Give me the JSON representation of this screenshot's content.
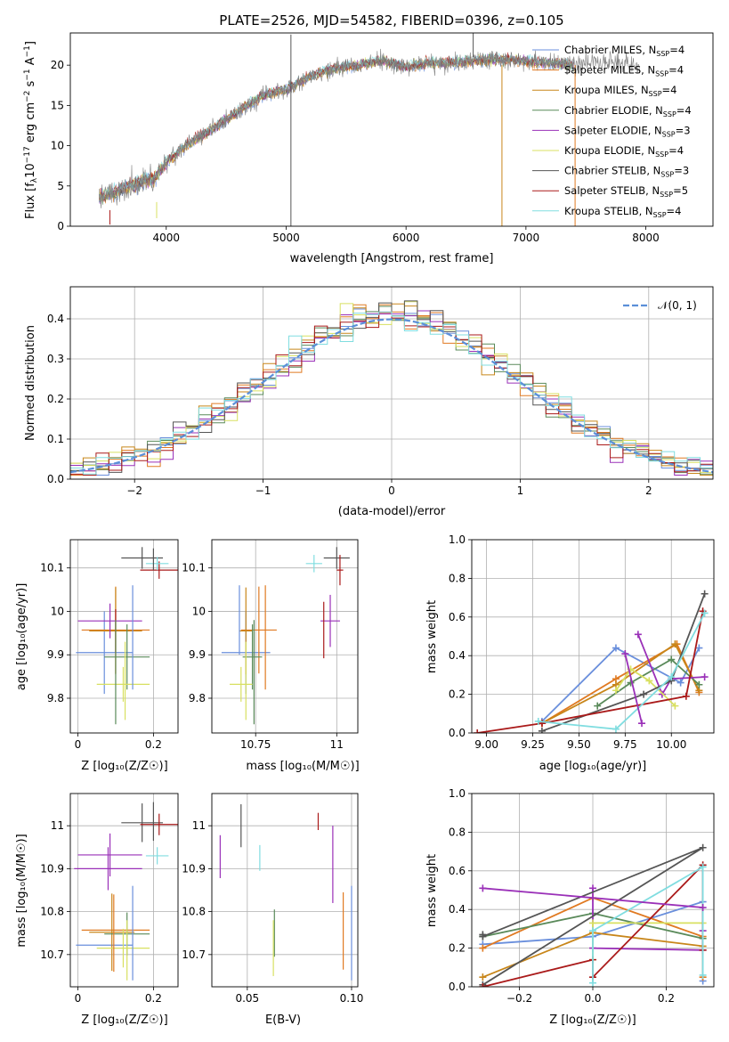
{
  "title": "PLATE=2526, MJD=54582, FIBERID=0396, z=0.105",
  "colors": {
    "Chabrier MILES": "#6a8fdc",
    "Salpeter MILES": "#e07a22",
    "Kroupa MILES": "#c8861a",
    "Chabrier ELODIE": "#5a8a5a",
    "Salpeter ELODIE": "#9a30b8",
    "Kroupa ELODIE": "#d8e060",
    "Chabrier STELIB": "#555555",
    "Salpeter STELIB": "#aa1a1a",
    "Kroupa STELIB": "#80dde0"
  },
  "legend": {
    "names": [
      "Chabrier MILES",
      "Salpeter MILES",
      "Kroupa MILES",
      "Chabrier ELODIE",
      "Salpeter ELODIE",
      "Kroupa ELODIE",
      "Chabrier STELIB",
      "Salpeter STELIB",
      "Kroupa STELIB"
    ],
    "nssp": [
      "4",
      "4",
      "4",
      "4",
      "3",
      "4",
      "3",
      "5",
      "4"
    ],
    "nssp_prefix": "N",
    "nssp_sub": "SSP",
    "normal_label": "𝒩(0, 1)"
  },
  "chart_data": [
    {
      "id": "spectrum",
      "type": "line",
      "xlabel": "wavelength [Angstrom, rest frame]",
      "ylabel_main": "Flux [f",
      "ylabel_sub": "λ",
      "ylabel_rest": "10",
      "ylabel_exp1": "−17",
      "ylabel_units": " erg cm",
      "ylabel_exp2": "−2",
      "ylabel_s": " s",
      "ylabel_exp3": "−1",
      "ylabel_A": " A",
      "ylabel_exp4": "−1",
      "ylabel_end": "]",
      "xlim": [
        3200,
        8560
      ],
      "ylim": [
        0,
        24
      ],
      "xticks": [
        4000,
        5000,
        6000,
        7000,
        8000
      ],
      "yticks": [
        0,
        5,
        10,
        15,
        20
      ],
      "continuum": [
        [
          3440,
          3.6
        ],
        [
          3600,
          4.3
        ],
        [
          3700,
          5.0
        ],
        [
          3800,
          5.6
        ],
        [
          3900,
          5.9
        ],
        [
          4000,
          8.0
        ],
        [
          4200,
          10.4
        ],
        [
          4400,
          12.2
        ],
        [
          4600,
          14.3
        ],
        [
          4800,
          16.2
        ],
        [
          5000,
          17.0
        ],
        [
          5200,
          18.6
        ],
        [
          5400,
          19.6
        ],
        [
          5600,
          20.0
        ],
        [
          5800,
          20.6
        ],
        [
          6000,
          19.8
        ],
        [
          6200,
          20.3
        ],
        [
          6400,
          20.3
        ],
        [
          6600,
          20.6
        ],
        [
          6800,
          20.7
        ],
        [
          7000,
          20.5
        ],
        [
          7200,
          20.3
        ],
        [
          7400,
          20.0
        ],
        [
          7600,
          20.5
        ],
        [
          7800,
          20.3
        ],
        [
          7950,
          20.1
        ]
      ],
      "models_end": 7400,
      "data_end": 7950,
      "spikes": [
        {
          "x": 5040,
          "y0": 0,
          "y1": 23.8,
          "color": "#555555"
        },
        {
          "x": 6800,
          "y0": 0,
          "y1": 20.0,
          "color": "#c8861a"
        },
        {
          "x": 7410,
          "y0": 0,
          "y1": 20.0,
          "color": "#e07a22"
        },
        {
          "x": 3920,
          "y0": 1.0,
          "y1": 3.0,
          "color": "#d8e060"
        },
        {
          "x": 3530,
          "y0": 0.2,
          "y1": 2.0,
          "color": "#aa1a1a"
        },
        {
          "x": 6560,
          "y0": 21.0,
          "y1": 24.0,
          "color": "#555555"
        }
      ]
    },
    {
      "id": "histogram",
      "type": "bar",
      "xlabel": "(data-model)/error",
      "ylabel": "Normed distribution",
      "xlim": [
        -2.5,
        2.5
      ],
      "ylim": [
        0,
        0.48
      ],
      "xticks": [
        -2,
        -1,
        0,
        1,
        2
      ],
      "yticks": [
        0.0,
        0.1,
        0.2,
        0.3,
        0.4
      ],
      "bin_width": 0.1
    },
    {
      "id": "age_vs_Z",
      "type": "scatter",
      "xlabel": "Z [log₁₀(Z/Z☉)]",
      "ylabel": "age  [log₁₀(age/yr)]",
      "xlim": [
        -0.02,
        0.265
      ],
      "ylim": [
        9.72,
        10.165
      ],
      "xticks": [
        0.0,
        0.2
      ],
      "yticks": [
        9.8,
        9.9,
        10.0,
        10.1
      ],
      "points": [
        {
          "series": "Chabrier MILES",
          "x": 0.07,
          "y": 9.905,
          "xe": 0.075,
          "ye": 0.095
        },
        {
          "series": "Salpeter MILES",
          "x": 0.1,
          "y": 9.957,
          "xe": 0.09,
          "ye": 0.1
        },
        {
          "series": "Kroupa MILES",
          "x": 0.1,
          "y": 9.955,
          "xe": 0.07,
          "ye": 0.1
        },
        {
          "series": "Chabrier ELODIE",
          "x": 0.13,
          "y": 9.895,
          "xe": 0.06,
          "ye": 0.075
        },
        {
          "series": "Salpeter ELODIE",
          "x": 0.085,
          "y": 9.978,
          "xe": 0.085,
          "ye": 0.04
        },
        {
          "series": "Kroupa ELODIE",
          "x": 0.12,
          "y": 9.832,
          "xe": 0.07,
          "ye": 0.04
        },
        {
          "series": "Chabrier STELIB",
          "x": 0.17,
          "y": 10.123,
          "xe": 0.055,
          "ye": 0.025
        },
        {
          "series": "Salpeter STELIB",
          "x": 0.215,
          "y": 10.095,
          "xe": 0.05,
          "ye": 0.02
        },
        {
          "series": "Kroupa STELIB",
          "x": 0.21,
          "y": 10.11,
          "xe": 0.03,
          "ye": 0.015
        },
        {
          "series": "Salpeter STELIB",
          "x": 0.1,
          "y": 9.955,
          "xe": 0.0,
          "ye": 0.05
        },
        {
          "series": "Chabrier MILES",
          "x": 0.145,
          "y": 9.94,
          "xe": 0.0,
          "ye": 0.12
        },
        {
          "series": "Chabrier STELIB",
          "x": 0.2,
          "y": 10.12,
          "xe": 0.0,
          "ye": 0.025
        },
        {
          "series": "Chabrier ELODIE",
          "x": 0.1,
          "y": 9.86,
          "xe": 0.0,
          "ye": 0.12
        },
        {
          "series": "Kroupa ELODIE",
          "x": 0.125,
          "y": 9.84,
          "xe": 0.0,
          "ye": 0.09
        }
      ]
    },
    {
      "id": "age_vs_mass",
      "type": "scatter",
      "xlabel": "mass [log₁₀(M/M☉)]",
      "xlim": [
        10.615,
        11.065
      ],
      "ylim": [
        9.72,
        10.165
      ],
      "xticks": [
        10.75,
        11.0
      ],
      "yticks": [
        9.8,
        9.9,
        10.0,
        10.1
      ],
      "points": [
        {
          "series": "Chabrier MILES",
          "x": 10.72,
          "y": 9.905,
          "xe": 0.075,
          "ye": 0.095
        },
        {
          "series": "Salpeter MILES",
          "x": 10.76,
          "y": 9.957,
          "xe": 0.055,
          "ye": 0.1
        },
        {
          "series": "Kroupa MILES",
          "x": 10.72,
          "y": 9.955,
          "xe": 0.02,
          "ye": 0.1
        },
        {
          "series": "Chabrier ELODIE",
          "x": 10.74,
          "y": 9.895,
          "xe": 0.03,
          "ye": 0.075
        },
        {
          "series": "Salpeter ELODIE",
          "x": 10.98,
          "y": 9.978,
          "xe": 0.03,
          "ye": 0.06
        },
        {
          "series": "Kroupa ELODIE",
          "x": 10.705,
          "y": 9.832,
          "xe": 0.035,
          "ye": 0.04
        },
        {
          "series": "Chabrier STELIB",
          "x": 11.0,
          "y": 10.123,
          "xe": 0.04,
          "ye": 0.025
        },
        {
          "series": "Salpeter STELIB",
          "x": 11.01,
          "y": 10.095,
          "xe": 0.01,
          "ye": 0.035
        },
        {
          "series": "Kroupa STELIB",
          "x": 10.93,
          "y": 10.11,
          "xe": 0.025,
          "ye": 0.02
        },
        {
          "series": "Salpeter STELIB",
          "x": 10.96,
          "y": 9.957,
          "xe": 0.0,
          "ye": 0.065
        },
        {
          "series": "Chabrier MILES",
          "x": 10.7,
          "y": 9.98,
          "xe": 0.0,
          "ye": 0.08
        },
        {
          "series": "Salpeter MILES",
          "x": 10.78,
          "y": 9.94,
          "xe": 0.0,
          "ye": 0.12
        },
        {
          "series": "Chabrier ELODIE",
          "x": 10.745,
          "y": 9.86,
          "xe": 0.0,
          "ye": 0.12
        },
        {
          "series": "Kroupa ELODIE",
          "x": 10.72,
          "y": 9.84,
          "xe": 0.0,
          "ye": 0.09
        }
      ]
    },
    {
      "id": "weight_vs_age",
      "type": "line",
      "xlabel": "age  [log₁₀(age/yr)]",
      "ylabel": "mass weight",
      "xlim": [
        8.92,
        10.23
      ],
      "ylim": [
        0,
        1.0
      ],
      "xticks": [
        9.0,
        9.25,
        9.5,
        9.75,
        10.0
      ],
      "xtick_labels": [
        "9.00",
        "9.25",
        "9.50",
        "9.75",
        "10.00"
      ],
      "yticks": [
        0.0,
        0.2,
        0.4,
        0.6,
        0.8,
        1.0
      ],
      "ytick_labels": [
        "0.0",
        "0.2",
        "0.4",
        "0.6",
        "0.8",
        "1.0"
      ],
      "series": [
        {
          "name": "Chabrier MILES",
          "x": [
            9.3,
            9.7,
            10.05,
            10.15
          ],
          "y": [
            0.06,
            0.44,
            0.26,
            0.44
          ]
        },
        {
          "name": "Salpeter MILES",
          "x": [
            9.3,
            9.7,
            10.03,
            10.15
          ],
          "y": [
            0.05,
            0.28,
            0.46,
            0.21
          ]
        },
        {
          "name": "Kroupa MILES",
          "x": [
            9.3,
            9.7,
            10.02,
            10.15
          ],
          "y": [
            0.05,
            0.25,
            0.46,
            0.22
          ]
        },
        {
          "name": "Chabrier ELODIE",
          "x": [
            9.6,
            9.78,
            10.0,
            10.15
          ],
          "y": [
            0.14,
            0.26,
            0.38,
            0.25
          ]
        },
        {
          "name": "Salpeter ELODIE",
          "x": [
            9.82,
            9.95,
            10.0,
            10.18
          ],
          "y": [
            0.51,
            0.2,
            0.28,
            0.29
          ]
        },
        {
          "name": "Kroupa ELODIE",
          "x": [
            9.7,
            9.78,
            9.88,
            10.02
          ],
          "y": [
            0.22,
            0.33,
            0.27,
            0.14
          ]
        },
        {
          "name": "Chabrier STELIB",
          "x": [
            9.3,
            9.85,
            10.0,
            10.18
          ],
          "y": [
            0.01,
            0.2,
            0.27,
            0.72
          ]
        },
        {
          "name": "Salpeter STELIB",
          "x": [
            8.95,
            9.3,
            10.08,
            10.17
          ],
          "y": [
            0.0,
            0.05,
            0.19,
            0.63
          ]
        },
        {
          "name": "Kroupa STELIB",
          "x": [
            9.28,
            9.7,
            10.0,
            10.18
          ],
          "y": [
            0.06,
            0.02,
            0.29,
            0.62
          ]
        },
        {
          "name": "Salpeter ELODIE",
          "x": [
            9.75,
            9.84
          ],
          "y": [
            0.41,
            0.05
          ]
        }
      ]
    },
    {
      "id": "mass_vs_Z",
      "type": "scatter",
      "xlabel": "Z [log₁₀(Z/Z☉)]",
      "ylabel": "mass [log₁₀(M/M☉)]",
      "xlim": [
        -0.02,
        0.265
      ],
      "ylim": [
        10.625,
        11.075
      ],
      "xticks": [
        0.0,
        0.2
      ],
      "yticks": [
        10.7,
        10.8,
        10.9,
        11.0
      ],
      "points": [
        {
          "series": "Chabrier MILES",
          "x": 0.07,
          "y": 10.722,
          "xe": 0.075,
          "ye": 0.0
        },
        {
          "series": "Salpeter MILES",
          "x": 0.1,
          "y": 10.757,
          "xe": 0.09,
          "ye": 0.0
        },
        {
          "series": "Kroupa MILES",
          "x": 0.09,
          "y": 10.752,
          "xe": 0.06,
          "ye": 0.09
        },
        {
          "series": "Chabrier ELODIE",
          "x": 0.13,
          "y": 10.748,
          "xe": 0.06,
          "ye": 0.05
        },
        {
          "series": "Salpeter ELODIE",
          "x": 0.085,
          "y": 10.932,
          "xe": 0.085,
          "ye": 0.05
        },
        {
          "series": "Kroupa ELODIE",
          "x": 0.12,
          "y": 10.715,
          "xe": 0.07,
          "ye": 0.045
        },
        {
          "series": "Chabrier STELIB",
          "x": 0.17,
          "y": 11.007,
          "xe": 0.055,
          "ye": 0.045
        },
        {
          "series": "Salpeter STELIB",
          "x": 0.215,
          "y": 11.003,
          "xe": 0.05,
          "ye": 0.025
        },
        {
          "series": "Kroupa STELIB",
          "x": 0.21,
          "y": 10.93,
          "xe": 0.03,
          "ye": 0.02
        },
        {
          "series": "Salpeter ELODIE",
          "x": 0.08,
          "y": 10.9,
          "xe": 0.09,
          "ye": 0.05
        },
        {
          "series": "Chabrier MILES",
          "x": 0.145,
          "y": 10.75,
          "xe": 0.0,
          "ye": 0.11
        },
        {
          "series": "Chabrier STELIB",
          "x": 0.2,
          "y": 11.01,
          "xe": 0.0,
          "ye": 0.045
        },
        {
          "series": "Salpeter MILES",
          "x": 0.095,
          "y": 10.75,
          "xe": 0.0,
          "ye": 0.09
        },
        {
          "series": "Kroupa ELODIE",
          "x": 0.13,
          "y": 10.71,
          "xe": 0.0,
          "ye": 0.07
        }
      ]
    },
    {
      "id": "mass_vs_ebv",
      "type": "scatter",
      "xlabel": "E(B-V)",
      "xlim": [
        0.033,
        0.103
      ],
      "ylim": [
        10.625,
        11.075
      ],
      "xticks": [
        0.05,
        0.1
      ],
      "xtick_labels": [
        "0.05",
        "0.10"
      ],
      "yticks": [
        10.7,
        10.8,
        10.9,
        11.0
      ],
      "points": [
        {
          "series": "Salpeter ELODIE",
          "x": 0.037,
          "y": 10.928,
          "xe": 0.0,
          "ye": 0.05
        },
        {
          "series": "Chabrier STELIB",
          "x": 0.047,
          "y": 11.0,
          "xe": 0.0,
          "ye": 0.05
        },
        {
          "series": "Kroupa STELIB",
          "x": 0.056,
          "y": 10.925,
          "xe": 0.0,
          "ye": 0.03
        },
        {
          "series": "Chabrier ELODIE",
          "x": 0.063,
          "y": 10.75,
          "xe": 0.0,
          "ye": 0.055
        },
        {
          "series": "Kroupa ELODIE",
          "x": 0.0625,
          "y": 10.715,
          "xe": 0.0,
          "ye": 0.065
        },
        {
          "series": "Salpeter STELIB",
          "x": 0.084,
          "y": 11.01,
          "xe": 0.0,
          "ye": 0.02
        },
        {
          "series": "Salpeter ELODIE",
          "x": 0.091,
          "y": 10.91,
          "xe": 0.0,
          "ye": 0.09
        },
        {
          "series": "Salpeter MILES",
          "x": 0.096,
          "y": 10.755,
          "xe": 0.0,
          "ye": 0.09
        },
        {
          "series": "Chabrier MILES",
          "x": 0.1,
          "y": 10.75,
          "xe": 0.0,
          "ye": 0.11
        }
      ]
    },
    {
      "id": "weight_vs_Z",
      "type": "line",
      "xlabel": "Z [log₁₀(Z/Z☉)]",
      "ylabel": "mass weight",
      "xlim": [
        -0.33,
        0.33
      ],
      "ylim": [
        0,
        1.0
      ],
      "xticks": [
        -0.2,
        0.0,
        0.2
      ],
      "xtick_labels": [
        "−0.2",
        "0.0",
        "0.2"
      ],
      "yticks": [
        0.0,
        0.2,
        0.4,
        0.6,
        0.8,
        1.0
      ],
      "ytick_labels": [
        "0.0",
        "0.2",
        "0.4",
        "0.6",
        "0.8",
        "1.0"
      ],
      "series": [
        {
          "name": "Chabrier MILES",
          "x": [
            -0.3,
            0.0,
            0.3,
            0.3
          ],
          "y": [
            0.22,
            0.26,
            0.44,
            0.03
          ]
        },
        {
          "name": "Salpeter MILES",
          "x": [
            -0.3,
            0.0,
            0.3,
            0.3
          ],
          "y": [
            0.2,
            0.46,
            0.26,
            0.05
          ]
        },
        {
          "name": "Kroupa MILES",
          "x": [
            -0.3,
            0.0,
            0.3
          ],
          "y": [
            0.05,
            0.28,
            0.21
          ]
        },
        {
          "name": "Chabrier ELODIE",
          "x": [
            -0.3,
            0.0,
            0.3
          ],
          "y": [
            0.26,
            0.38,
            0.25
          ]
        },
        {
          "name": "Salpeter ELODIE",
          "x": [
            0.0,
            0.0,
            0.3,
            0.3
          ],
          "y": [
            0.51,
            0.2,
            0.19,
            0.29
          ]
        },
        {
          "name": "Kroupa ELODIE",
          "x": [
            0.0,
            0.0,
            0.3
          ],
          "y": [
            0.14,
            0.33,
            0.33
          ]
        },
        {
          "name": "Chabrier STELIB",
          "x": [
            -0.3,
            0.3,
            -0.3,
            -0.3
          ],
          "y": [
            0.01,
            0.72,
            0.26,
            0.27
          ]
        },
        {
          "name": "Salpeter STELIB",
          "x": [
            -0.3,
            0.0,
            0.0,
            0.3,
            0.3
          ],
          "y": [
            0.0,
            0.14,
            0.05,
            0.63,
            0.19
          ]
        },
        {
          "name": "Kroupa STELIB",
          "x": [
            0.0,
            0.0,
            0.3,
            0.3
          ],
          "y": [
            0.02,
            0.29,
            0.62,
            0.06
          ]
        },
        {
          "name": "Salpeter ELODIE",
          "x": [
            -0.3,
            0.3
          ],
          "y": [
            0.51,
            0.41
          ]
        }
      ]
    }
  ]
}
